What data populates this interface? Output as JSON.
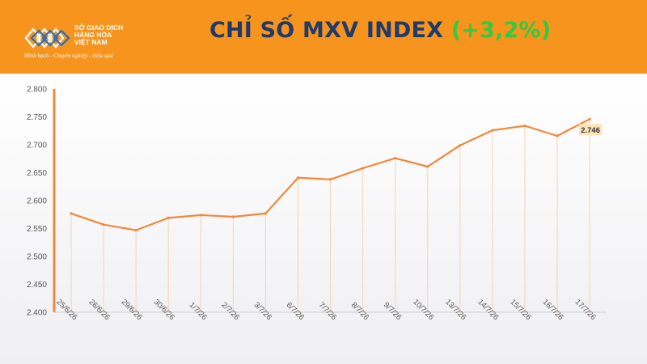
{
  "header": {
    "logo_lines": [
      "SỞ GIAO DỊCH",
      "HÀNG HÓA",
      "VIỆT NAM"
    ],
    "logo_tagline": "Minh bạch - Chuyên nghiệp - Hiệu quả",
    "title": "CHỈ SỐ MXV INDEX",
    "change": "(+3,2%)",
    "colors": {
      "header_bg": "#f7941d",
      "title": "#1f3a6b",
      "change": "#2ecc40",
      "line": "#f0883a"
    }
  },
  "chart_data": {
    "type": "line",
    "title": "CHỈ SỐ MXV INDEX",
    "categories": [
      "25/6/26",
      "26/6/26",
      "29/6/26",
      "30/6/26",
      "1/7/26",
      "2/7/26",
      "3/7/26",
      "6/7/26",
      "7/7/26",
      "8/7/26",
      "9/7/26",
      "10/7/26",
      "13/7/26",
      "14/7/26",
      "15/7/26",
      "16/7/26",
      "17/7/26"
    ],
    "values": [
      2577,
      2557,
      2547,
      2569,
      2574,
      2571,
      2577,
      2641,
      2638,
      2658,
      2676,
      2661,
      2699,
      2726,
      2734,
      2716,
      2746
    ],
    "ylim": [
      2400,
      2800
    ],
    "yticks": [
      2400,
      2450,
      2500,
      2550,
      2600,
      2650,
      2700,
      2750,
      2800
    ],
    "ytick_labels": [
      "2.400",
      "2.450",
      "2.500",
      "2.550",
      "2.600",
      "2.650",
      "2.700",
      "2.750",
      "2.800"
    ],
    "last_label": "2.746",
    "xlabel": "",
    "ylabel": "",
    "grid": false
  }
}
